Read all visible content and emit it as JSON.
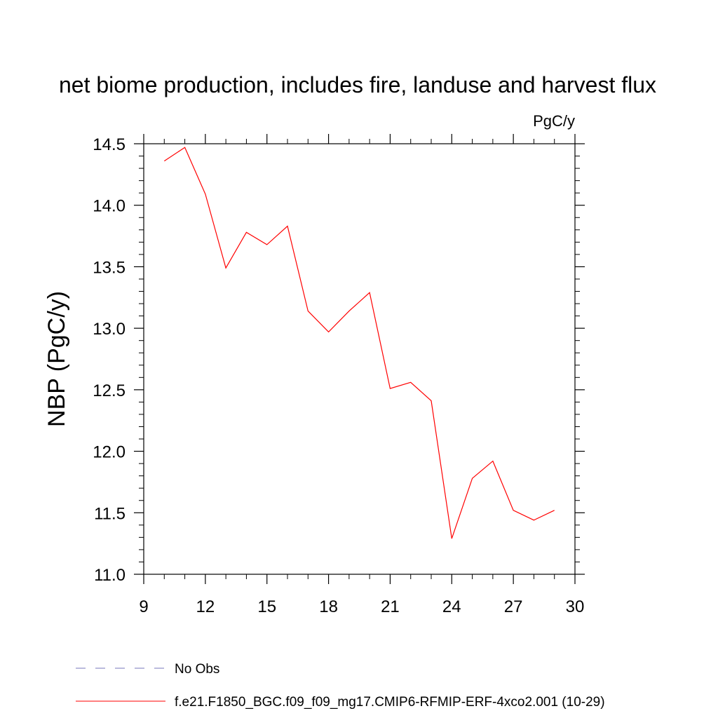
{
  "chart_data": {
    "type": "line",
    "title": "net biome production, includes fire, landuse and harvest flux",
    "units": "PgC/y",
    "xlabel": "",
    "ylabel": "NBP  (PgC/y)",
    "xlim": [
      9,
      30
    ],
    "ylim": [
      11.0,
      14.5
    ],
    "xticks": [
      "9",
      "12",
      "15",
      "18",
      "21",
      "24",
      "27",
      "30"
    ],
    "yticks": [
      "11.0",
      "11.5",
      "12.0",
      "12.5",
      "13.0",
      "13.5",
      "14.0",
      "14.5"
    ],
    "series": [
      {
        "name": "f.e21.F1850_BGC.f09_f09_mg17.CMIP6-RFMIP-ERF-4xco2.001 (10-29)",
        "color": "#ff0000",
        "line_style": "solid",
        "x": [
          10,
          11,
          12,
          13,
          14,
          15,
          16,
          17,
          18,
          19,
          20,
          21,
          22,
          23,
          24,
          25,
          26,
          27,
          28,
          29
        ],
        "values": [
          14.36,
          14.47,
          14.09,
          13.49,
          13.78,
          13.68,
          13.83,
          13.14,
          12.97,
          13.14,
          13.29,
          12.51,
          12.56,
          12.41,
          11.29,
          11.78,
          11.92,
          11.52,
          11.44,
          11.52
        ]
      }
    ],
    "legend": {
      "placement": "bottom",
      "entries": [
        {
          "label": "No Obs",
          "color": "#7777bb",
          "line_style": "dashed"
        },
        {
          "label": "f.e21.F1850_BGC.f09_f09_mg17.CMIP6-RFMIP-ERF-4xco2.001 (10-29)",
          "color": "#ff0000",
          "line_style": "solid"
        }
      ]
    },
    "grid": false
  }
}
